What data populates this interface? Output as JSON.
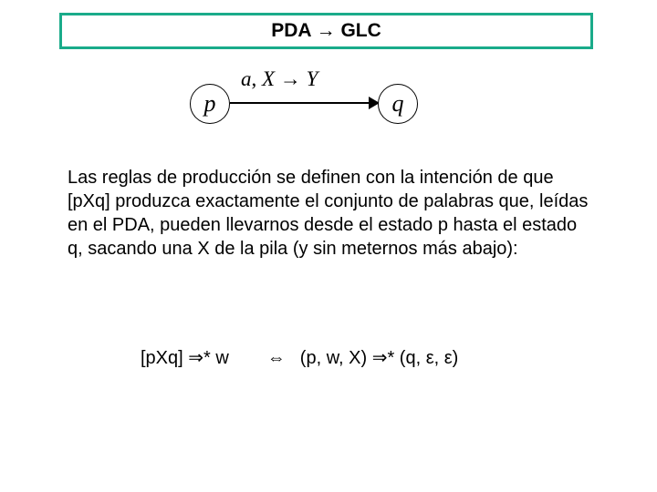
{
  "title": {
    "left": "PDA",
    "arrow": "→",
    "right": "GLC",
    "border_color": "#1aab8a"
  },
  "diagram": {
    "state_p": "p",
    "state_q": "q",
    "label_a": "a",
    "label_comma": ", ",
    "label_X": "X",
    "label_arrow": " → ",
    "label_Y": "Y"
  },
  "paragraph": "Las reglas de producción se definen con la intención de que [pXq] produzca exactamente el conjunto de palabras que, leídas en el PDA, pueden llevarnos desde el estado p hasta el estado q, sacando una X de la pila (y sin meternos más abajo):",
  "formula": {
    "left": "[pXq] ⇒* w",
    "iff": "⇔",
    "right": "(p, w, X) ⇒* (q, ε, ε)"
  }
}
